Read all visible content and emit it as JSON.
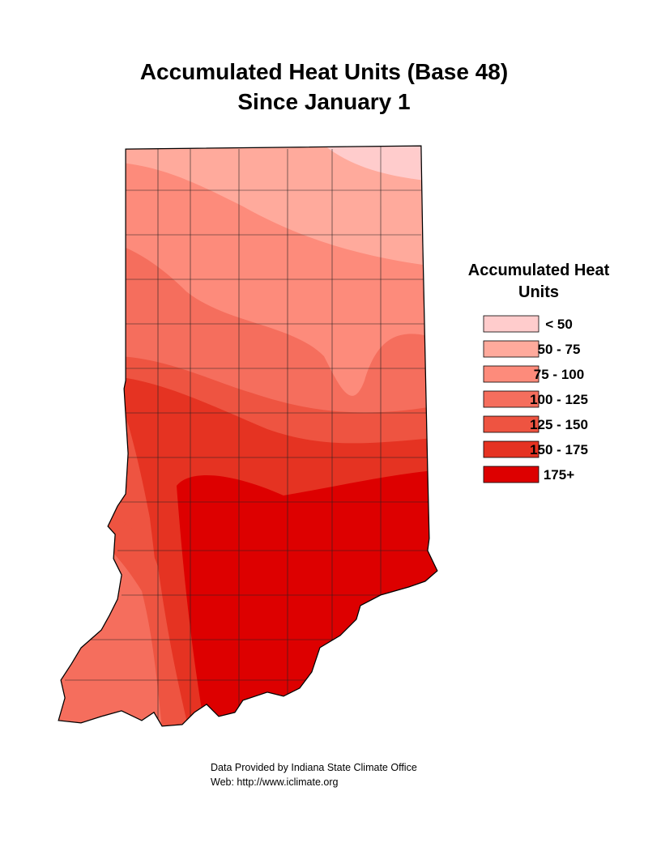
{
  "title": [
    "Accumulated Heat Units (Base 48)",
    "Since January 1"
  ],
  "legend": {
    "title": [
      "Accumulated Heat",
      "Units"
    ],
    "items": [
      {
        "label": "< 50",
        "color": "#ffcccc"
      },
      {
        "label": "50 - 75",
        "color": "#ffaa9c"
      },
      {
        "label": "75 - 100",
        "color": "#fd8b7b"
      },
      {
        "label": "100 - 125",
        "color": "#f56e5d"
      },
      {
        "label": "125 - 150",
        "color": "#ee5441"
      },
      {
        "label": "150 - 175",
        "color": "#e53322"
      },
      {
        "label": "175+",
        "color": "#dd0000"
      }
    ]
  },
  "footer": [
    "Data Provided by Indiana State Climate Office",
    "Web:  http://www.iclimate.org"
  ]
}
